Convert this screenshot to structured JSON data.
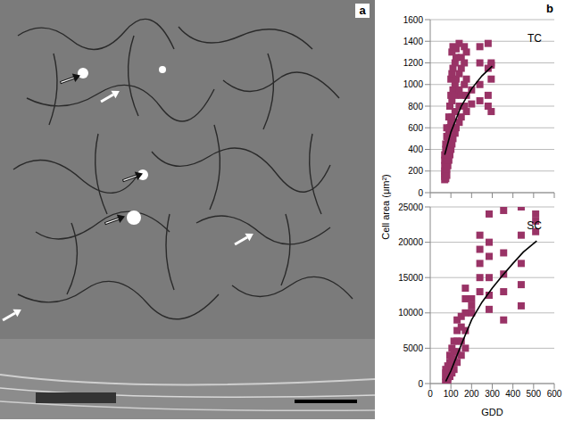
{
  "image_panel": {
    "label": "a"
  },
  "chart_panel": {
    "label": "b"
  },
  "chart_data": [
    {
      "type": "scatter",
      "annotation": "TC",
      "ylabel": "Cell area (μm²)",
      "xlim": [
        0,
        600
      ],
      "xticks": [
        0,
        100,
        200,
        300,
        400,
        500,
        600
      ],
      "ylim": [
        0,
        1600
      ],
      "yticks": [
        0,
        200,
        400,
        600,
        800,
        1000,
        1200,
        1400,
        1600
      ],
      "grid": true,
      "tick_labels": "y",
      "series": [
        {
          "type": "scatter",
          "marker": "square",
          "color": "#993366",
          "x": [
            70,
            70,
            70,
            70,
            70,
            70,
            70,
            75,
            75,
            75,
            75,
            75,
            80,
            80,
            80,
            80,
            80,
            80,
            85,
            85,
            85,
            85,
            90,
            90,
            90,
            90,
            95,
            95,
            95,
            100,
            100,
            100,
            100,
            100,
            105,
            105,
            105,
            105,
            105,
            110,
            110,
            110,
            110,
            110,
            120,
            120,
            120,
            120,
            120,
            125,
            125,
            125,
            125,
            140,
            140,
            140,
            140,
            140,
            150,
            150,
            150,
            150,
            165,
            165,
            165,
            165,
            175,
            175,
            175,
            175,
            200,
            200,
            240,
            240,
            240,
            240,
            280,
            280,
            280,
            280,
            295,
            295,
            295,
            295
          ],
          "values": [
            120,
            150,
            180,
            200,
            250,
            300,
            350,
            130,
            200,
            280,
            400,
            450,
            160,
            220,
            300,
            380,
            520,
            600,
            250,
            350,
            420,
            500,
            300,
            450,
            550,
            700,
            350,
            600,
            800,
            400,
            500,
            650,
            900,
            1050,
            450,
            700,
            850,
            1100,
            1300,
            500,
            600,
            950,
            1150,
            1350,
            550,
            750,
            900,
            1000,
            1200,
            600,
            1050,
            1250,
            1330,
            650,
            800,
            950,
            1100,
            1380,
            700,
            900,
            1150,
            1250,
            800,
            1000,
            1200,
            1350,
            750,
            900,
            1050,
            1300,
            820,
            950,
            850,
            1000,
            1200,
            1350,
            800,
            900,
            1150,
            1380,
            750,
            1050,
            1200,
            1180
          ]
        },
        {
          "type": "line",
          "line_style": "solid",
          "color": "#000000",
          "x": [
            70,
            100,
            150,
            200,
            250,
            300
          ],
          "values": [
            350,
            560,
            800,
            960,
            1080,
            1170
          ]
        }
      ]
    },
    {
      "type": "scatter",
      "annotation": "SC",
      "xlabel": "GDD",
      "xlim": [
        0,
        600
      ],
      "xticks": [
        0,
        100,
        200,
        300,
        400,
        500,
        600
      ],
      "ylim": [
        0,
        25000
      ],
      "yticks": [
        0,
        5000,
        10000,
        15000,
        20000,
        25000
      ],
      "grid": true,
      "series": [
        {
          "type": "scatter",
          "marker": "square",
          "color": "#993366",
          "x": [
            75,
            75,
            75,
            75,
            75,
            85,
            85,
            85,
            85,
            95,
            95,
            95,
            95,
            105,
            105,
            105,
            105,
            115,
            115,
            115,
            115,
            130,
            130,
            130,
            130,
            130,
            150,
            150,
            150,
            150,
            170,
            170,
            170,
            170,
            170,
            200,
            200,
            200,
            240,
            240,
            240,
            240,
            240,
            285,
            285,
            285,
            285,
            285,
            285,
            355,
            355,
            355,
            355,
            355,
            440,
            440,
            440,
            440,
            440,
            510,
            510,
            510
          ],
          "values": [
            200,
            500,
            1000,
            1500,
            2000,
            300,
            800,
            1500,
            2500,
            1000,
            2000,
            3000,
            4000,
            1500,
            2500,
            3500,
            5000,
            2000,
            3500,
            4500,
            6000,
            3000,
            4500,
            6000,
            7500,
            9000,
            4000,
            6000,
            8000,
            9500,
            5000,
            7500,
            10000,
            12000,
            13500,
            10000,
            11000,
            12000,
            13000,
            15000,
            17000,
            19000,
            21000,
            10500,
            12500,
            15000,
            18000,
            20000,
            24000,
            9000,
            13000,
            15500,
            18500,
            24500,
            11000,
            14000,
            17000,
            21000,
            25000,
            21500,
            23000,
            24000
          ]
        },
        {
          "type": "line",
          "line_style": "solid",
          "color": "#000000",
          "x": [
            75,
            100,
            150,
            200,
            250,
            300,
            350,
            400,
            450,
            515
          ],
          "values": [
            300,
            1800,
            5500,
            9000,
            11500,
            13500,
            15300,
            17000,
            18600,
            20200
          ]
        }
      ]
    }
  ]
}
